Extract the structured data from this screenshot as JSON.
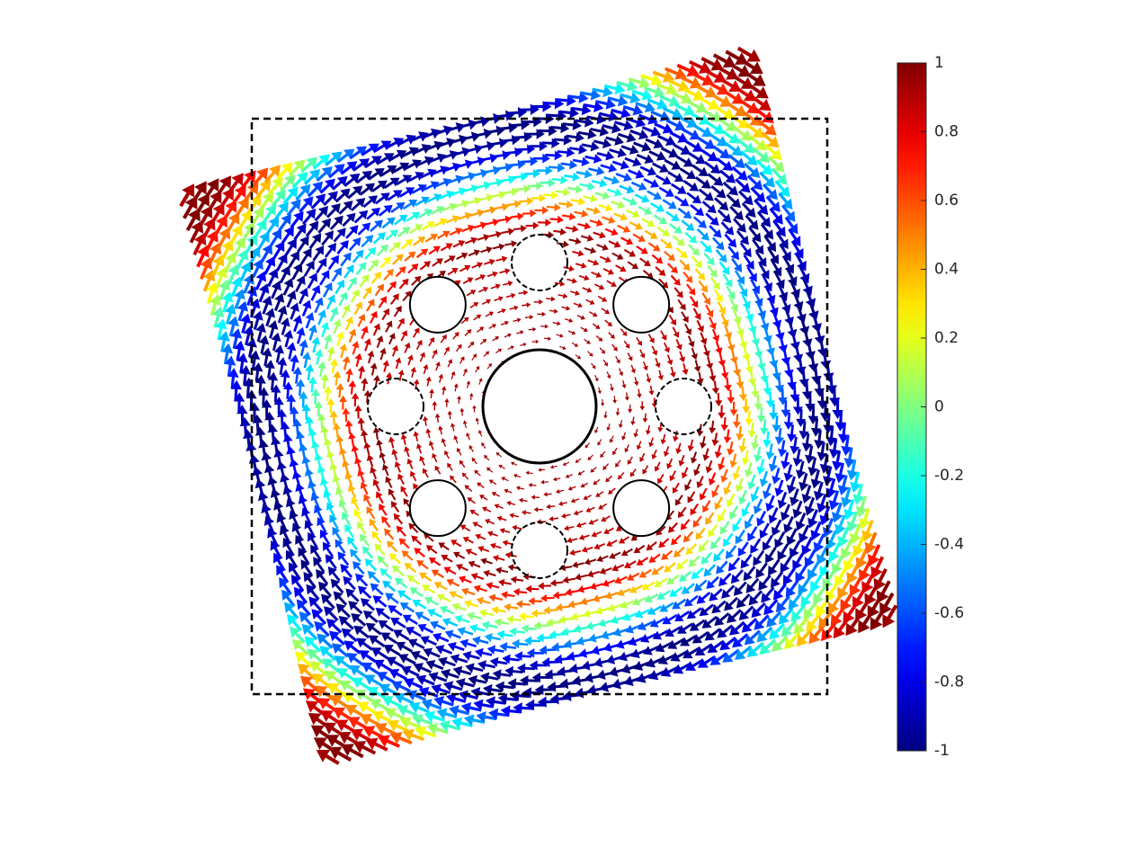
{
  "chart_data": {
    "type": "quiver",
    "colormap": "jet",
    "clim": [
      -1,
      1
    ],
    "cticks": [
      -1,
      -0.8,
      -0.6,
      -0.4,
      -0.2,
      0,
      0.2,
      0.4,
      0.6,
      0.8,
      1
    ]
  }
}
